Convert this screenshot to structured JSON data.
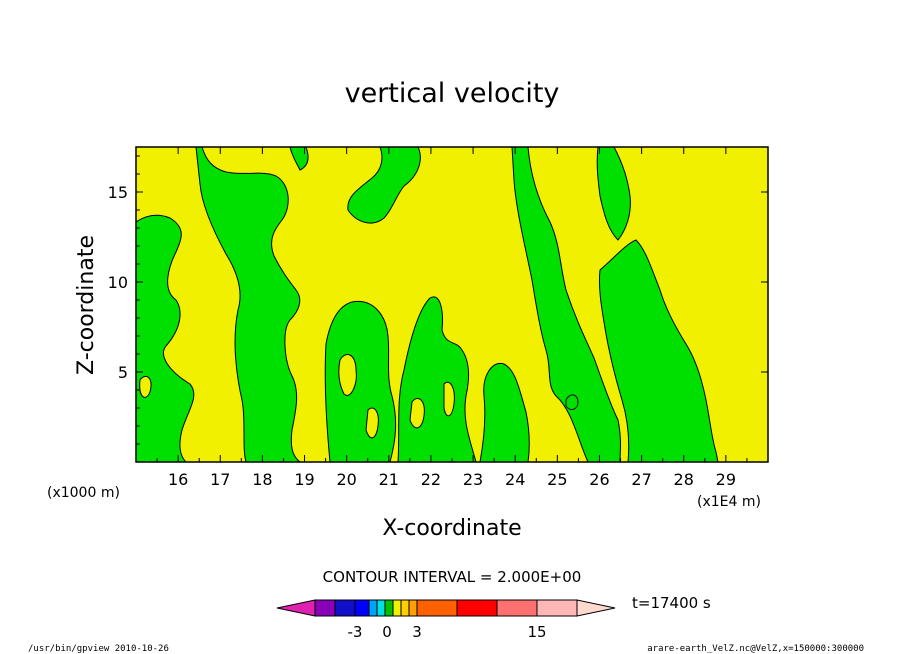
{
  "chart_data": {
    "type": "heatmap",
    "title": "vertical velocity",
    "xlabel": "X-coordinate",
    "ylabel": "Z-coordinate",
    "x_axis_scale_note": "(x1E4 m)",
    "y_axis_scale_note": "(x1000 m)",
    "x_ticks": [
      "16",
      "17",
      "18",
      "19",
      "20",
      "21",
      "22",
      "23",
      "24",
      "25",
      "26",
      "27",
      "28",
      "29"
    ],
    "y_ticks": [
      "5",
      "10",
      "15"
    ],
    "xlim": [
      15,
      30
    ],
    "ylim": [
      0,
      17.5
    ],
    "contour_interval_text": "CONTOUR INTERVAL = 2.000E+00",
    "time_label": "t=17400 s",
    "colorbar_labels": [
      "-3",
      "0",
      "3",
      "15"
    ],
    "colorbar_colors": [
      "#8a008a",
      "#1010c8",
      "#0000ff",
      "#00a0ff",
      "#00e0e0",
      "#00c000",
      "#f0f000",
      "#ffc000",
      "#ff8000",
      "#ff6000",
      "#ff0000",
      "#ff8080",
      "#ffc0c0",
      "#ffd8d0"
    ],
    "colors": {
      "positive": "#f0f000",
      "negative": "#00e000",
      "frame": "#000000"
    },
    "regions": {
      "yellow_zone": {
        "x": [
          21,
          27.5
        ],
        "z": [
          5,
          17.5
        ]
      },
      "green_zones": [
        {
          "x": [
            15,
            16
          ],
          "z": [
            0,
            13
          ]
        },
        {
          "x": [
            16.8,
            17.3
          ],
          "z": [
            0,
            17.5
          ]
        },
        {
          "x": [
            18,
            19
          ],
          "z": [
            0,
            11
          ]
        },
        {
          "x": [
            20,
            21.5
          ],
          "z": [
            0,
            9
          ]
        },
        {
          "x": [
            21.5,
            25
          ],
          "z": [
            0,
            8
          ]
        },
        {
          "x": [
            25,
            27
          ],
          "z": [
            0,
            6
          ]
        },
        {
          "x": [
            26,
            28.5
          ],
          "z": [
            0,
            17.5
          ]
        },
        {
          "x": [
            23,
            24
          ],
          "z": [
            12,
            17.5
          ]
        }
      ]
    }
  },
  "footer": {
    "left": "/usr/bin/gpview 2010-10-26",
    "right": "arare-earth_VelZ.nc@VelZ,x=150000:300000"
  }
}
